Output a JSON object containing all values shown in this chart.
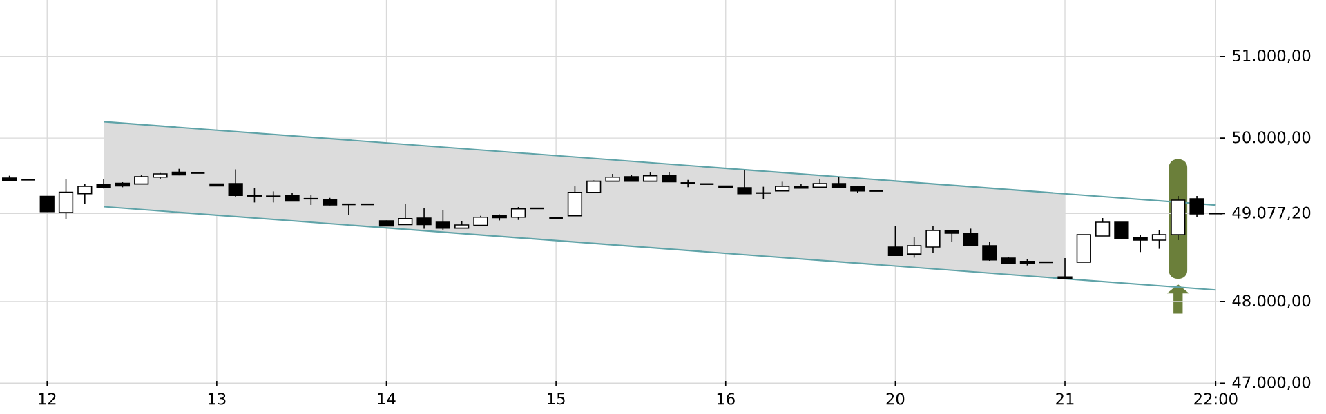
{
  "chart_data": {
    "type": "candlestick",
    "categories": [
      null,
      null,
      "12",
      null,
      null,
      null,
      null,
      null,
      null,
      null,
      null,
      "13",
      null,
      null,
      null,
      null,
      null,
      null,
      null,
      null,
      "14",
      null,
      null,
      null,
      null,
      null,
      null,
      null,
      null,
      "15",
      null,
      null,
      null,
      null,
      null,
      null,
      null,
      null,
      "16",
      null,
      null,
      null,
      null,
      null,
      null,
      null,
      null,
      "20",
      null,
      null,
      null,
      null,
      null,
      null,
      null,
      null,
      "21",
      null,
      null,
      null,
      null,
      null,
      null,
      null,
      "22:00"
    ],
    "ohlc": [
      [
        49510,
        49539,
        49482,
        49482
      ],
      [
        49490,
        49490,
        49490,
        49490
      ],
      [
        49286,
        49290,
        49100,
        49100
      ],
      [
        49088,
        49494,
        49009,
        49337
      ],
      [
        49320,
        49438,
        49195,
        49409
      ],
      [
        49431,
        49494,
        49381,
        49398
      ],
      [
        49448,
        49460,
        49398,
        49414
      ],
      [
        49438,
        49544,
        49438,
        49527
      ],
      [
        49522,
        49573,
        49499,
        49561
      ],
      [
        49583,
        49623,
        49544,
        49549
      ],
      [
        49573,
        49573,
        49573,
        49573
      ],
      [
        49438,
        49440,
        49410,
        49414
      ],
      [
        49443,
        49617,
        49280,
        49297
      ],
      [
        49300,
        49392,
        49212,
        49290
      ],
      [
        49290,
        49347,
        49212,
        49285
      ],
      [
        49297,
        49325,
        49223,
        49229
      ],
      [
        49260,
        49307,
        49182,
        49255
      ],
      [
        49251,
        49268,
        49178,
        49182
      ],
      [
        49189,
        49189,
        49060,
        49189
      ],
      [
        49189,
        49189,
        49189,
        49189
      ],
      [
        48987,
        48990,
        48920,
        48925
      ],
      [
        48942,
        49190,
        48942,
        49014
      ],
      [
        49021,
        49139,
        48891,
        48942
      ],
      [
        48970,
        49122,
        48869,
        48897
      ],
      [
        48897,
        48987,
        48897,
        48936
      ],
      [
        48931,
        49049,
        48931,
        49032
      ],
      [
        49049,
        49066,
        48992,
        49026
      ],
      [
        49032,
        49156,
        48998,
        49133
      ],
      [
        49139,
        49139,
        49139,
        49139
      ],
      [
        49021,
        49021,
        49021,
        49021
      ],
      [
        49049,
        49409,
        49049,
        49336
      ],
      [
        49336,
        49480,
        49336,
        49472
      ],
      [
        49472,
        49561,
        49472,
        49522
      ],
      [
        49527,
        49550,
        49472,
        49472
      ],
      [
        49472,
        49578,
        49472,
        49539
      ],
      [
        49539,
        49578,
        49465,
        49465
      ],
      [
        49453,
        49488,
        49398,
        49443
      ],
      [
        49437,
        49437,
        49437,
        49437
      ],
      [
        49414,
        49414,
        49392,
        49392
      ],
      [
        49392,
        49612,
        49320,
        49320
      ],
      [
        49330,
        49404,
        49252,
        49325
      ],
      [
        49353,
        49465,
        49353,
        49409
      ],
      [
        49409,
        49437,
        49387,
        49387
      ],
      [
        49398,
        49494,
        49398,
        49443
      ],
      [
        49443,
        49522,
        49398,
        49398
      ],
      [
        49409,
        49409,
        49330,
        49353
      ],
      [
        49353,
        49353,
        49353,
        49353
      ],
      [
        48666,
        48920,
        48564,
        48564
      ],
      [
        48581,
        48785,
        48536,
        48683
      ],
      [
        48666,
        48920,
        48598,
        48869
      ],
      [
        48869,
        48869,
        48734,
        48835
      ],
      [
        48835,
        48891,
        48683,
        48683
      ],
      [
        48683,
        48734,
        48497,
        48508
      ],
      [
        48531,
        48548,
        48463,
        48463
      ],
      [
        48491,
        48514,
        48441,
        48463
      ],
      [
        48480,
        48480,
        48480,
        48480
      ],
      [
        48300,
        48531,
        48277,
        48277
      ],
      [
        48480,
        48818,
        48480,
        48818
      ],
      [
        48801,
        49021,
        48801,
        48970
      ],
      [
        48970,
        48970,
        48768,
        48768
      ],
      [
        48779,
        48818,
        48604,
        48751
      ],
      [
        48751,
        48869,
        48644,
        48818
      ],
      [
        48818,
        49291,
        48751,
        49240
      ],
      [
        49257,
        49291,
        49032,
        49071
      ],
      [
        49077,
        49077,
        49077,
        49077
      ]
    ],
    "series": [
      {
        "type": "line",
        "color": "#5fa3a8",
        "values": [
          null,
          null,
          null,
          null,
          null,
          50200,
          null,
          null,
          null,
          null,
          null,
          null,
          null,
          null,
          null,
          null,
          null,
          null,
          null,
          null,
          null,
          null,
          null,
          null,
          null,
          null,
          null,
          null,
          null,
          null,
          null,
          null,
          null,
          null,
          null,
          null,
          null,
          null,
          null,
          null,
          null,
          null,
          null,
          null,
          null,
          null,
          null,
          null,
          null,
          null,
          null,
          null,
          null,
          null,
          null,
          null,
          null,
          null,
          null,
          null,
          null,
          null,
          null,
          null,
          49180
        ],
        "lower": [
          null,
          null,
          null,
          null,
          null,
          49160,
          null,
          null,
          null,
          null,
          null,
          null,
          null,
          null,
          null,
          null,
          null,
          null,
          null,
          null,
          null,
          null,
          null,
          null,
          null,
          null,
          null,
          null,
          null,
          null,
          null,
          null,
          null,
          null,
          null,
          null,
          null,
          null,
          null,
          null,
          null,
          null,
          null,
          null,
          null,
          null,
          null,
          null,
          null,
          null,
          null,
          null,
          null,
          null,
          null,
          null,
          48270,
          null,
          null,
          null,
          null,
          null,
          null,
          null,
          null
        ],
        "upper": [
          null,
          null,
          null,
          null,
          null,
          50200,
          null,
          null,
          null,
          null,
          null,
          null,
          null,
          null,
          null,
          null,
          null,
          null,
          null,
          null,
          null,
          null,
          null,
          null,
          null,
          null,
          null,
          null,
          null,
          null,
          null,
          null,
          null,
          null,
          null,
          null,
          null,
          null,
          null,
          null,
          null,
          null,
          null,
          null,
          null,
          null,
          null,
          null,
          null,
          null,
          null,
          null,
          null,
          null,
          null,
          null,
          49320,
          null,
          null,
          null,
          null,
          null,
          null,
          null,
          null
        ]
      },
      {
        "type": "line",
        "color": "#5fa3a8",
        "values": [
          null,
          null,
          null,
          null,
          null,
          49160,
          null,
          null,
          null,
          null,
          null,
          null,
          null,
          null,
          null,
          null,
          null,
          null,
          null,
          null,
          null,
          null,
          null,
          null,
          null,
          null,
          null,
          null,
          null,
          null,
          null,
          null,
          null,
          null,
          null,
          null,
          null,
          null,
          null,
          null,
          null,
          null,
          null,
          null,
          null,
          null,
          null,
          null,
          null,
          null,
          null,
          null,
          null,
          null,
          null,
          null,
          null,
          null,
          null,
          null,
          null,
          null,
          null,
          null,
          48140
        ]
      }
    ],
    "ylim": [
      46960,
      51690
    ],
    "yticks": [
      {
        "value": 47000,
        "label": "47.000,00"
      },
      {
        "value": 48000,
        "label": "48.000,00"
      },
      {
        "value": 49077.2,
        "label": "49.077,20"
      },
      {
        "value": 50000,
        "label": "50.000,00"
      },
      {
        "value": 51000,
        "label": "51.000,00"
      }
    ],
    "grid": true
  }
}
